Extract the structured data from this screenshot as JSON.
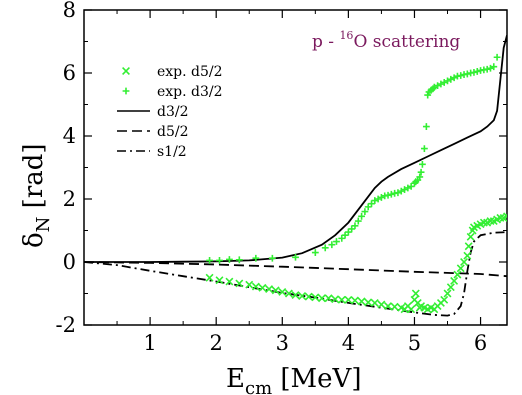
{
  "chart_data": {
    "type": "scatter",
    "title": "",
    "annotation": {
      "prefix": "p - ",
      "superscript": "16",
      "suffix": "O scattering",
      "color": "#7b1a5e"
    },
    "xlabel": {
      "main": "E",
      "sub": "cm",
      "rest": " [MeV]"
    },
    "ylabel": {
      "main": "δ",
      "sub": "N",
      "rest": " [rad]"
    },
    "xlim": [
      0,
      6.4
    ],
    "ylim": [
      -2,
      8
    ],
    "x_ticks": [
      1,
      2,
      3,
      4,
      5,
      6
    ],
    "y_ticks": [
      -2,
      0,
      2,
      4,
      6,
      8
    ],
    "grid": false,
    "legend_position": "upper-left",
    "legend": [
      {
        "label": "exp. d5/2",
        "kind": "marker-x",
        "color": "#33ee33"
      },
      {
        "label": "exp. d3/2",
        "kind": "marker-plus",
        "color": "#33ee33"
      },
      {
        "label": "d3/2",
        "kind": "line-solid",
        "color": "#000000"
      },
      {
        "label": "d5/2",
        "kind": "line-dashed",
        "color": "#000000"
      },
      {
        "label": "s1/2",
        "kind": "line-dashdot",
        "color": "#000000"
      }
    ],
    "series": [
      {
        "name": "d3/2",
        "style": "solid",
        "x": [
          0,
          0.5,
          1.0,
          1.5,
          2.0,
          2.5,
          3.0,
          3.3,
          3.6,
          3.8,
          4.0,
          4.2,
          4.4,
          4.5,
          4.6,
          4.8,
          5.0,
          5.2,
          5.4,
          5.6,
          5.8,
          6.0,
          6.1,
          6.2,
          6.25,
          6.3,
          6.35,
          6.4
        ],
        "y": [
          0,
          0,
          0,
          0.01,
          0.02,
          0.05,
          0.14,
          0.28,
          0.55,
          0.85,
          1.25,
          1.8,
          2.35,
          2.55,
          2.7,
          2.95,
          3.15,
          3.35,
          3.55,
          3.75,
          3.95,
          4.15,
          4.3,
          4.5,
          4.8,
          5.8,
          6.8,
          7.2
        ]
      },
      {
        "name": "d5/2",
        "style": "dashed",
        "x": [
          0,
          1,
          2,
          3,
          4,
          5,
          6,
          6.4
        ],
        "y": [
          0,
          -0.03,
          -0.08,
          -0.15,
          -0.23,
          -0.31,
          -0.38,
          -0.45
        ]
      },
      {
        "name": "s1/2",
        "style": "dashdot",
        "x": [
          0,
          0.5,
          1.0,
          1.5,
          2.0,
          2.5,
          3.0,
          3.5,
          4.0,
          4.5,
          5.0,
          5.3,
          5.5,
          5.6,
          5.7,
          5.75,
          5.8,
          5.85,
          5.9,
          6.0,
          6.2,
          6.4
        ],
        "y": [
          0,
          -0.1,
          -0.28,
          -0.45,
          -0.62,
          -0.8,
          -0.98,
          -1.13,
          -1.3,
          -1.45,
          -1.6,
          -1.68,
          -1.7,
          -1.65,
          -1.4,
          -1.0,
          -0.3,
          0.3,
          0.65,
          0.85,
          0.93,
          0.95
        ]
      },
      {
        "name": "exp. d3/2",
        "marker": "plus",
        "x": [
          1.9,
          2.05,
          2.2,
          2.35,
          2.6,
          2.85,
          3.2,
          3.5,
          3.65,
          3.75,
          3.82,
          3.9,
          3.95,
          4.0,
          4.05,
          4.1,
          4.15,
          4.2,
          4.25,
          4.3,
          4.35,
          4.4,
          4.45,
          4.5,
          4.55,
          4.6,
          4.65,
          4.7,
          4.75,
          4.8,
          4.85,
          4.9,
          4.95,
          5.0,
          5.02,
          5.05,
          5.08,
          5.1,
          5.12,
          5.15,
          5.18,
          5.2,
          5.22,
          5.25,
          5.28,
          5.3,
          5.35,
          5.4,
          5.45,
          5.5,
          5.55,
          5.6,
          5.65,
          5.7,
          5.75,
          5.8,
          5.85,
          5.9,
          5.95,
          6.0,
          6.05,
          6.1,
          6.15,
          6.2,
          6.25
        ],
        "y": [
          0.05,
          0.05,
          0.08,
          0.07,
          0.12,
          0.12,
          0.15,
          0.3,
          0.45,
          0.55,
          0.65,
          0.75,
          0.85,
          0.95,
          1.05,
          1.15,
          1.3,
          1.45,
          1.6,
          1.75,
          1.85,
          1.95,
          2.0,
          2.05,
          2.1,
          2.12,
          2.15,
          2.18,
          2.2,
          2.25,
          2.3,
          2.35,
          2.4,
          2.5,
          2.55,
          2.6,
          2.7,
          2.85,
          3.1,
          3.6,
          4.3,
          5.3,
          5.4,
          5.45,
          5.5,
          5.55,
          5.6,
          5.65,
          5.7,
          5.75,
          5.8,
          5.85,
          5.9,
          5.92,
          5.95,
          5.97,
          6.0,
          6.02,
          6.05,
          6.08,
          6.1,
          6.12,
          6.15,
          6.2,
          6.5
        ]
      },
      {
        "name": "exp. d5/2",
        "marker": "x",
        "x": [
          1.9,
          2.05,
          2.2,
          2.35,
          2.5,
          2.6,
          2.7,
          2.8,
          2.9,
          3.0,
          3.1,
          3.2,
          3.3,
          3.4,
          3.5,
          3.6,
          3.7,
          3.8,
          3.9,
          4.0,
          4.1,
          4.2,
          4.3,
          4.4,
          4.5,
          4.6,
          4.7,
          4.8,
          4.85,
          4.9,
          4.95,
          5.0,
          5.02,
          5.05,
          5.08,
          5.1,
          5.15,
          5.2,
          5.25,
          5.3,
          5.35,
          5.4,
          5.45,
          5.5,
          5.55,
          5.6,
          5.65,
          5.7,
          5.75,
          5.8,
          5.82,
          5.85,
          5.88,
          5.9,
          5.95,
          6.0,
          6.05,
          6.1,
          6.15,
          6.2,
          6.25,
          6.3,
          6.35,
          6.4
        ],
        "y": [
          -0.5,
          -0.58,
          -0.62,
          -0.68,
          -0.72,
          -0.78,
          -0.82,
          -0.86,
          -0.9,
          -0.95,
          -1.0,
          -1.05,
          -1.08,
          -1.1,
          -1.12,
          -1.15,
          -1.15,
          -1.18,
          -1.2,
          -1.2,
          -1.22,
          -1.25,
          -1.28,
          -1.3,
          -1.35,
          -1.4,
          -1.42,
          -1.45,
          -1.5,
          -1.4,
          -1.5,
          -1.2,
          -1.0,
          -1.3,
          -1.45,
          -1.4,
          -1.45,
          -1.5,
          -1.45,
          -1.5,
          -1.4,
          -1.3,
          -1.2,
          -1.0,
          -0.8,
          -0.6,
          -0.4,
          -0.2,
          0.0,
          0.2,
          0.5,
          0.8,
          1.0,
          1.1,
          1.15,
          1.2,
          1.25,
          1.25,
          1.3,
          1.3,
          1.35,
          1.4,
          1.4,
          1.45
        ]
      }
    ]
  }
}
